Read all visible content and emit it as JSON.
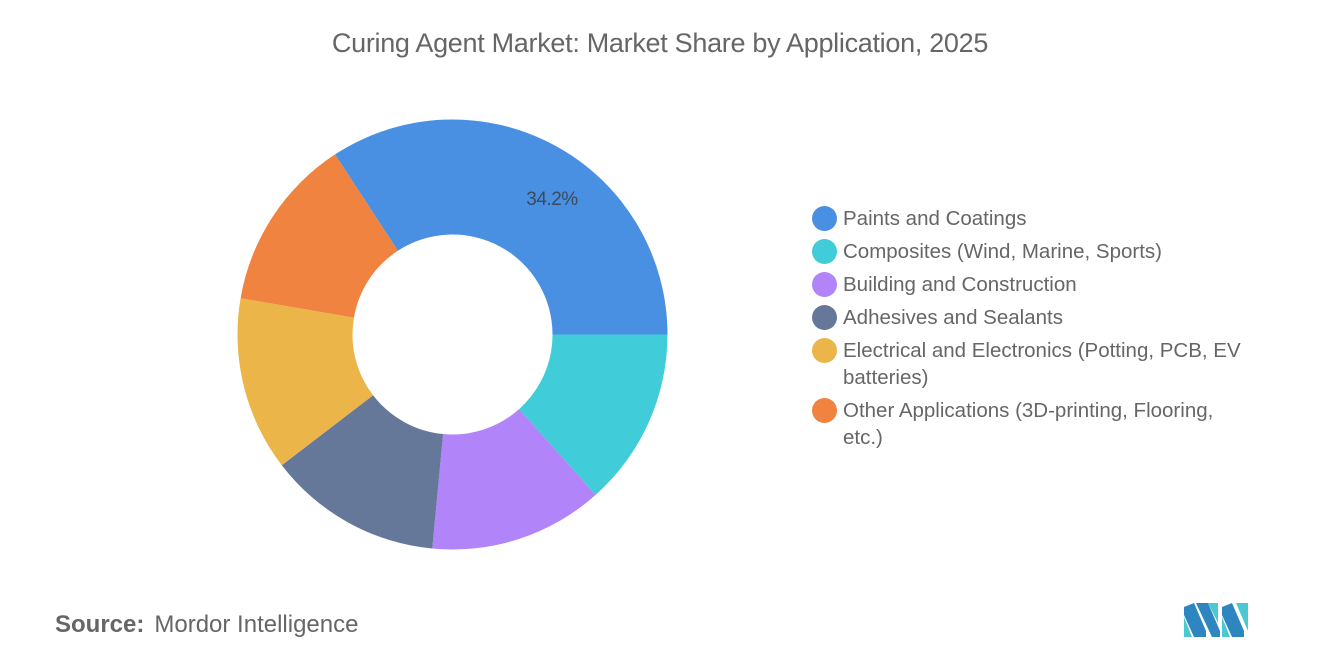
{
  "title": "Curing Agent Market: Market Share by Application, 2025",
  "source": {
    "label": "Source:",
    "value": "Mordor Intelligence"
  },
  "logo": "mordor-intelligence-logo",
  "chart_data": {
    "type": "pie",
    "subtype": "donut",
    "title": "Curing Agent Market: Market Share by Application, 2025",
    "categories": [
      "Paints and Coatings",
      "Composites (Wind, Marine, Sports)",
      "Building and Construction",
      "Adhesives and Sealants",
      "Electrical and Electronics (Potting, PCB, EV batteries)",
      "Other Applications (3D-printing, Flooring, etc.)"
    ],
    "values": [
      34.2,
      13.4,
      13.1,
      13.1,
      13.1,
      13.1
    ],
    "colors": [
      "#4A90E2",
      "#40CCD8",
      "#B184F9",
      "#65789A",
      "#EBB54A",
      "#F0833F"
    ],
    "data_labels": [
      {
        "category": "Paints and Coatings",
        "text": "34.2%"
      }
    ],
    "legend_position": "right",
    "unit": "%"
  },
  "legend": {
    "items": [
      {
        "label": "Paints and Coatings",
        "color": "#4A90E2"
      },
      {
        "label": "Composites (Wind, Marine, Sports)",
        "color": "#40CCD8"
      },
      {
        "label": "Building and Construction",
        "color": "#B184F9"
      },
      {
        "label": "Adhesives and Sealants",
        "color": "#65789A"
      },
      {
        "label": "Electrical and Electronics (Potting, PCB, EV batteries)",
        "color": "#EBB54A"
      },
      {
        "label": "Other Applications (3D-printing, Flooring, etc.)",
        "color": "#F0833F"
      }
    ]
  }
}
